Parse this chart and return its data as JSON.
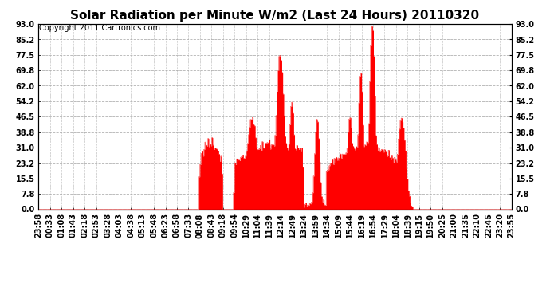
{
  "title": "Solar Radiation per Minute W/m2 (Last 24 Hours) 20110320",
  "copyright": "Copyright 2011 Cartronics.com",
  "yticks": [
    0.0,
    7.8,
    15.5,
    23.2,
    31.0,
    38.8,
    46.5,
    54.2,
    62.0,
    69.8,
    77.5,
    85.2,
    93.0
  ],
  "ymin": 0.0,
  "ymax": 93.0,
  "bar_color": "#ff0000",
  "bg_color": "#ffffff",
  "plot_bg_color": "#ffffff",
  "grid_color": "#aaaaaa",
  "baseline_color": "#cc0000",
  "title_fontsize": 11,
  "copyright_fontsize": 7,
  "tick_fontsize": 7,
  "n_minutes": 1440,
  "xtick_labels": [
    "23:58",
    "00:33",
    "01:08",
    "01:43",
    "02:18",
    "02:53",
    "03:28",
    "04:03",
    "04:38",
    "05:13",
    "05:48",
    "06:23",
    "06:58",
    "07:33",
    "08:08",
    "08:43",
    "09:18",
    "09:54",
    "10:29",
    "11:04",
    "11:39",
    "12:14",
    "12:49",
    "13:24",
    "13:59",
    "14:34",
    "15:09",
    "15:44",
    "16:19",
    "16:54",
    "17:29",
    "18:04",
    "18:39",
    "19:15",
    "19:50",
    "20:25",
    "21:00",
    "21:35",
    "22:10",
    "22:45",
    "23:20",
    "23:55"
  ]
}
